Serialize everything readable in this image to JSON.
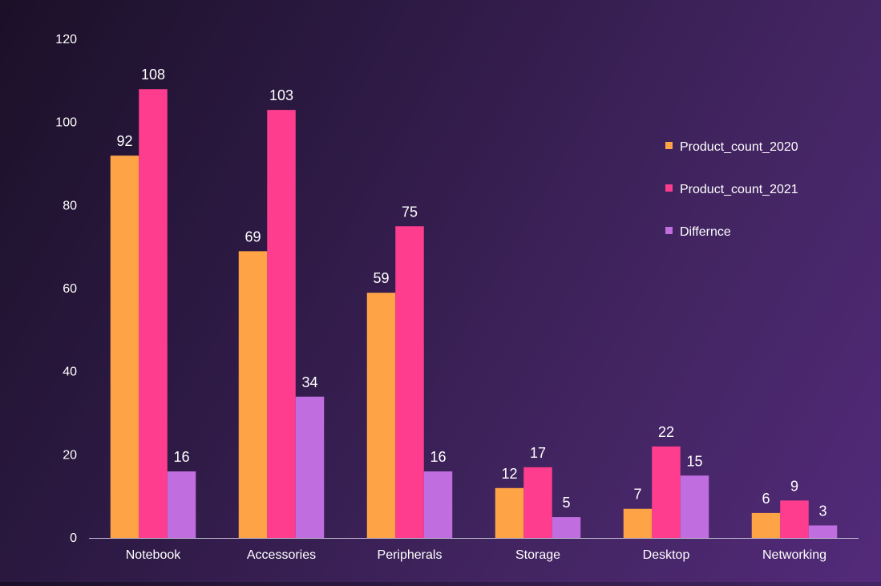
{
  "chart_data": {
    "type": "bar",
    "title": "",
    "xlabel": "",
    "ylabel": "",
    "categories": [
      "Notebook",
      "Accessories",
      "Peripherals",
      "Storage",
      "Desktop",
      "Networking"
    ],
    "series": [
      {
        "name": "Product_count_2020",
        "color": "#ffa347",
        "values": [
          92,
          69,
          59,
          12,
          7,
          6
        ]
      },
      {
        "name": "Product_count_2021",
        "color": "#ff3d8e",
        "values": [
          108,
          103,
          75,
          17,
          22,
          9
        ]
      },
      {
        "name": "Differnce",
        "color": "#c06de0",
        "values": [
          16,
          34,
          16,
          5,
          15,
          3
        ]
      }
    ],
    "ylim": [
      0,
      120
    ],
    "yticks": [
      0,
      20,
      40,
      60,
      80,
      100,
      120
    ],
    "grid": false,
    "legend_position": "right",
    "data_labels": true
  },
  "colors": {
    "axis_line": "#c8c0d6",
    "label_text": "#ffffff"
  }
}
